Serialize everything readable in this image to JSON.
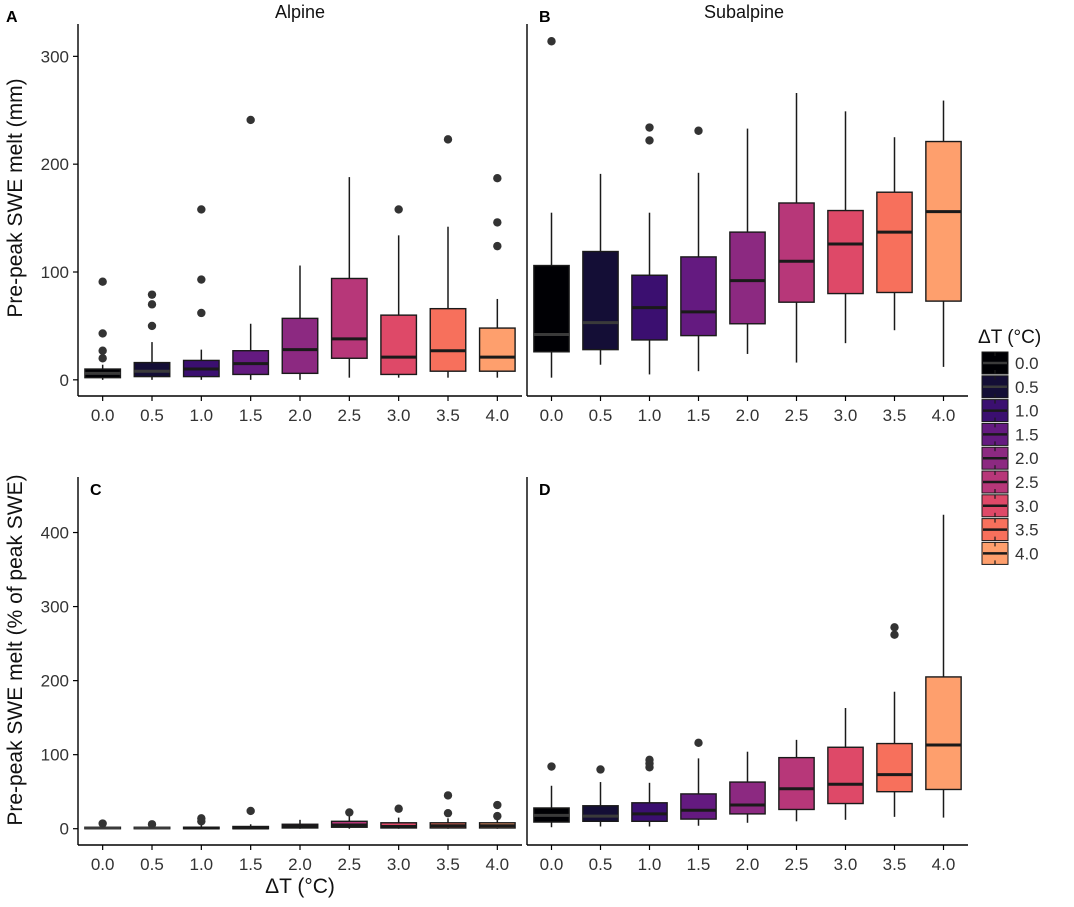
{
  "chart_data": [
    {
      "id": "A",
      "type": "boxplot",
      "tag": "A",
      "title": "Alpine",
      "ylabel": "Pre-peak SWE melt (mm)",
      "ylim": [
        -15,
        330
      ],
      "yticks": [
        "0",
        "100",
        "200",
        "300"
      ],
      "categories": [
        "0.0",
        "0.5",
        "1.0",
        "1.5",
        "2.0",
        "2.5",
        "3.0",
        "3.5",
        "4.0"
      ],
      "boxes": [
        {
          "q1": 2,
          "median": 6,
          "q3": 10,
          "lo": 0,
          "hi": 14,
          "outliers": [
            20,
            27,
            43,
            91
          ]
        },
        {
          "q1": 3,
          "median": 8,
          "q3": 16,
          "lo": 0,
          "hi": 35,
          "outliers": [
            50,
            70,
            79
          ]
        },
        {
          "q1": 3,
          "median": 10,
          "q3": 18,
          "lo": 0,
          "hi": 28,
          "outliers": [
            62,
            93,
            158
          ]
        },
        {
          "q1": 5,
          "median": 15,
          "q3": 27,
          "lo": 0,
          "hi": 52,
          "outliers": [
            241
          ]
        },
        {
          "q1": 6,
          "median": 28,
          "q3": 57,
          "lo": 0,
          "hi": 106,
          "outliers": []
        },
        {
          "q1": 20,
          "median": 38,
          "q3": 94,
          "lo": 2,
          "hi": 188,
          "outliers": []
        },
        {
          "q1": 5,
          "median": 21,
          "q3": 60,
          "lo": 2,
          "hi": 134,
          "outliers": [
            158
          ]
        },
        {
          "q1": 8,
          "median": 27,
          "q3": 66,
          "lo": 2,
          "hi": 142,
          "outliers": [
            223
          ]
        },
        {
          "q1": 8,
          "median": 21,
          "q3": 48,
          "lo": 2,
          "hi": 75,
          "outliers": [
            124,
            146,
            187
          ]
        }
      ]
    },
    {
      "id": "B",
      "type": "boxplot",
      "tag": "B",
      "title": "Subalpine",
      "ylabel": "",
      "ylim": [
        -15,
        330
      ],
      "yticks": [],
      "categories": [
        "0.0",
        "0.5",
        "1.0",
        "1.5",
        "2.0",
        "2.5",
        "3.0",
        "3.5",
        "4.0"
      ],
      "boxes": [
        {
          "q1": 26,
          "median": 42,
          "q3": 106,
          "lo": 2,
          "hi": 155,
          "outliers": [
            314
          ]
        },
        {
          "q1": 28,
          "median": 53,
          "q3": 119,
          "lo": 14,
          "hi": 191,
          "outliers": []
        },
        {
          "q1": 37,
          "median": 67,
          "q3": 97,
          "lo": 5,
          "hi": 155,
          "outliers": [
            222,
            234
          ]
        },
        {
          "q1": 41,
          "median": 63,
          "q3": 114,
          "lo": 8,
          "hi": 192,
          "outliers": [
            231
          ]
        },
        {
          "q1": 52,
          "median": 92,
          "q3": 137,
          "lo": 24,
          "hi": 233,
          "outliers": []
        },
        {
          "q1": 72,
          "median": 110,
          "q3": 164,
          "lo": 16,
          "hi": 266,
          "outliers": []
        },
        {
          "q1": 80,
          "median": 126,
          "q3": 157,
          "lo": 34,
          "hi": 249,
          "outliers": []
        },
        {
          "q1": 81,
          "median": 137,
          "q3": 174,
          "lo": 46,
          "hi": 225,
          "outliers": []
        },
        {
          "q1": 73,
          "median": 156,
          "q3": 221,
          "lo": 12,
          "hi": 259,
          "outliers": []
        }
      ]
    },
    {
      "id": "C",
      "type": "boxplot",
      "tag": "C",
      "title": "",
      "ylabel": "Pre-peak SWE melt (% of peak SWE)",
      "ylim": [
        -22,
        475
      ],
      "yticks": [
        "0",
        "100",
        "200",
        "300",
        "400"
      ],
      "categories": [
        "0.0",
        "0.5",
        "1.0",
        "1.5",
        "2.0",
        "2.5",
        "3.0",
        "3.5",
        "4.0"
      ],
      "boxes": [
        {
          "q1": 0,
          "median": 1,
          "q3": 2,
          "lo": 0,
          "hi": 4,
          "outliers": [
            7
          ]
        },
        {
          "q1": 0,
          "median": 1,
          "q3": 2,
          "lo": 0,
          "hi": 4,
          "outliers": [
            6
          ]
        },
        {
          "q1": 0,
          "median": 1,
          "q3": 2,
          "lo": 0,
          "hi": 5,
          "outliers": [
            10,
            14
          ]
        },
        {
          "q1": 0,
          "median": 1,
          "q3": 3,
          "lo": 0,
          "hi": 6,
          "outliers": [
            24
          ]
        },
        {
          "q1": 1,
          "median": 3,
          "q3": 6,
          "lo": 0,
          "hi": 12,
          "outliers": []
        },
        {
          "q1": 2,
          "median": 5,
          "q3": 10,
          "lo": 0,
          "hi": 17,
          "outliers": [
            22
          ]
        },
        {
          "q1": 1,
          "median": 3,
          "q3": 8,
          "lo": 0,
          "hi": 15,
          "outliers": [
            27
          ]
        },
        {
          "q1": 1,
          "median": 4,
          "q3": 8,
          "lo": 0,
          "hi": 14,
          "outliers": [
            21,
            45
          ]
        },
        {
          "q1": 1,
          "median": 4,
          "q3": 8,
          "lo": 0,
          "hi": 14,
          "outliers": [
            17,
            32
          ]
        }
      ]
    },
    {
      "id": "D",
      "type": "boxplot",
      "tag": "D",
      "title": "",
      "ylabel": "",
      "ylim": [
        -22,
        475
      ],
      "yticks": [],
      "categories": [
        "0.0",
        "0.5",
        "1.0",
        "1.5",
        "2.0",
        "2.5",
        "3.0",
        "3.5",
        "4.0"
      ],
      "boxes": [
        {
          "q1": 9,
          "median": 18,
          "q3": 28,
          "lo": 2,
          "hi": 58,
          "outliers": [
            84
          ]
        },
        {
          "q1": 10,
          "median": 17,
          "q3": 31,
          "lo": 3,
          "hi": 63,
          "outliers": [
            80
          ]
        },
        {
          "q1": 10,
          "median": 20,
          "q3": 35,
          "lo": 3,
          "hi": 62,
          "outliers": [
            83,
            88,
            93
          ]
        },
        {
          "q1": 13,
          "median": 25,
          "q3": 47,
          "lo": 4,
          "hi": 95,
          "outliers": [
            116
          ]
        },
        {
          "q1": 20,
          "median": 32,
          "q3": 63,
          "lo": 8,
          "hi": 104,
          "outliers": []
        },
        {
          "q1": 26,
          "median": 54,
          "q3": 96,
          "lo": 10,
          "hi": 120,
          "outliers": []
        },
        {
          "q1": 34,
          "median": 60,
          "q3": 110,
          "lo": 12,
          "hi": 163,
          "outliers": []
        },
        {
          "q1": 50,
          "median": 73,
          "q3": 115,
          "lo": 16,
          "hi": 185,
          "outliers": [
            262,
            272
          ]
        },
        {
          "q1": 53,
          "median": 113,
          "q3": 205,
          "lo": 15,
          "hi": 424,
          "outliers": []
        }
      ]
    }
  ],
  "xlabel": "ΔT (°C)",
  "legend": {
    "title": "ΔT (°C)",
    "labels": [
      "0.0",
      "0.5",
      "1.0",
      "1.5",
      "2.0",
      "2.5",
      "3.0",
      "3.5",
      "4.0"
    ]
  },
  "colors": [
    "#000004",
    "#140E36",
    "#3B0F70",
    "#641A80",
    "#8C2981",
    "#B73779",
    "#DE4968",
    "#F7705C",
    "#FE9F6D"
  ],
  "median_colors": [
    "#3a3a3a",
    "#3a3a3a",
    "#1a1a1a",
    "#1a1a1a",
    "#1a1a1a",
    "#1a1a1a",
    "#1a1a1a",
    "#1a1a1a",
    "#1a1a1a"
  ]
}
